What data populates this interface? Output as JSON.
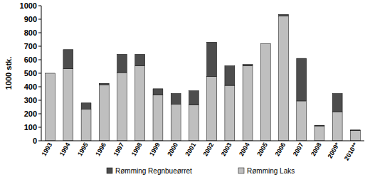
{
  "chart_data": {
    "type": "bar",
    "stacked": true,
    "legend": "bottom",
    "y_label": "1000 stk.",
    "categories": [
      "1993",
      "1994",
      "1995",
      "1996",
      "1997",
      "1998",
      "1999",
      "2000",
      "2001",
      "2002",
      "2003",
      "2004",
      "2005",
      "2006",
      "2007",
      "2008",
      "2009*",
      "2010**"
    ],
    "series": [
      {
        "name": "Rømming Laks",
        "color": "#bfbfbf",
        "values": [
          500,
          535,
          235,
          415,
          505,
          555,
          340,
          270,
          265,
          475,
          410,
          555,
          720,
          925,
          295,
          110,
          215,
          75
        ]
      },
      {
        "name": "Rømming Regnbueørret",
        "color": "#4d4d4d",
        "values": [
          0,
          140,
          45,
          10,
          135,
          85,
          45,
          80,
          105,
          255,
          145,
          10,
          0,
          10,
          315,
          5,
          135,
          5
        ]
      }
    ],
    "ylim": [
      0,
      1000
    ],
    "yticks": [
      0,
      100,
      200,
      300,
      400,
      500,
      600,
      700,
      800,
      900,
      1000
    ]
  }
}
